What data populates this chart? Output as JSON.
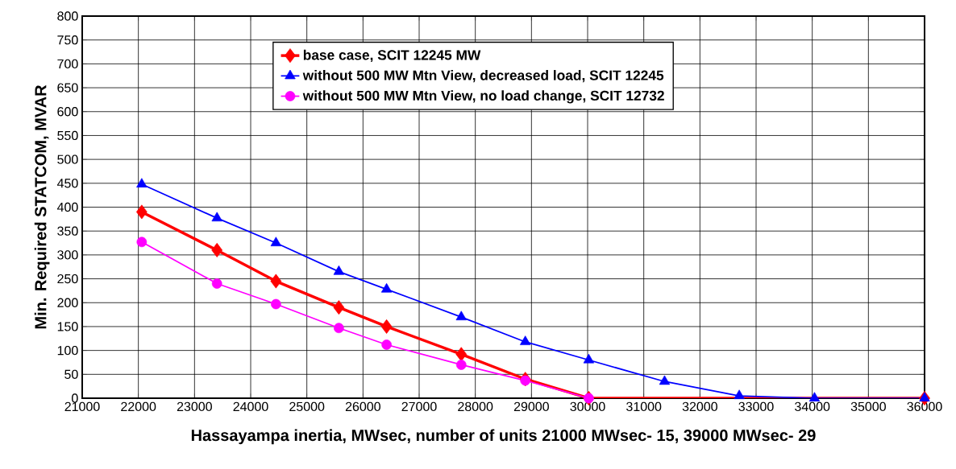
{
  "chart_data": {
    "type": "line",
    "xlabel": "Hassayampa inertia, MWsec, number of units 21000 MWsec- 15, 39000 MWsec- 29",
    "ylabel": "Min. Required STATCOM, MVAR",
    "xlim": [
      21000,
      36000
    ],
    "ylim": [
      0,
      800
    ],
    "xticks": [
      21000,
      22000,
      23000,
      24000,
      25000,
      26000,
      27000,
      28000,
      29000,
      30000,
      31000,
      32000,
      33000,
      34000,
      35000,
      36000
    ],
    "yticks": [
      0,
      50,
      100,
      150,
      200,
      250,
      300,
      350,
      400,
      450,
      500,
      550,
      600,
      650,
      700,
      750,
      800
    ],
    "grid": true,
    "legend": "top",
    "series": [
      {
        "name": "base case, SCIT 12245 MW",
        "color": "#ff0000",
        "marker": "diamond",
        "x": [
          22060,
          23400,
          24450,
          25570,
          26420,
          27750,
          28890,
          30020,
          36000
        ],
        "values": [
          390,
          310,
          245,
          190,
          150,
          92,
          40,
          0,
          0
        ]
      },
      {
        "name": "without 500 MW Mtn View, decreased load, SCIT 12245",
        "color": "#0000ff",
        "marker": "triangle",
        "x": [
          22060,
          23400,
          24450,
          25570,
          26420,
          27750,
          28890,
          30020,
          31370,
          32700,
          34040,
          36000
        ],
        "values": [
          448,
          377,
          325,
          265,
          228,
          170,
          118,
          80,
          35,
          5,
          0,
          0
        ]
      },
      {
        "name": "without 500 MW Mtn View, no load change, SCIT 12732",
        "color": "#ff00ff",
        "marker": "circle",
        "x": [
          22060,
          23400,
          24450,
          25570,
          26420,
          27750,
          28890,
          30020
        ],
        "values": [
          327,
          240,
          197,
          147,
          112,
          70,
          37,
          0
        ]
      }
    ]
  }
}
